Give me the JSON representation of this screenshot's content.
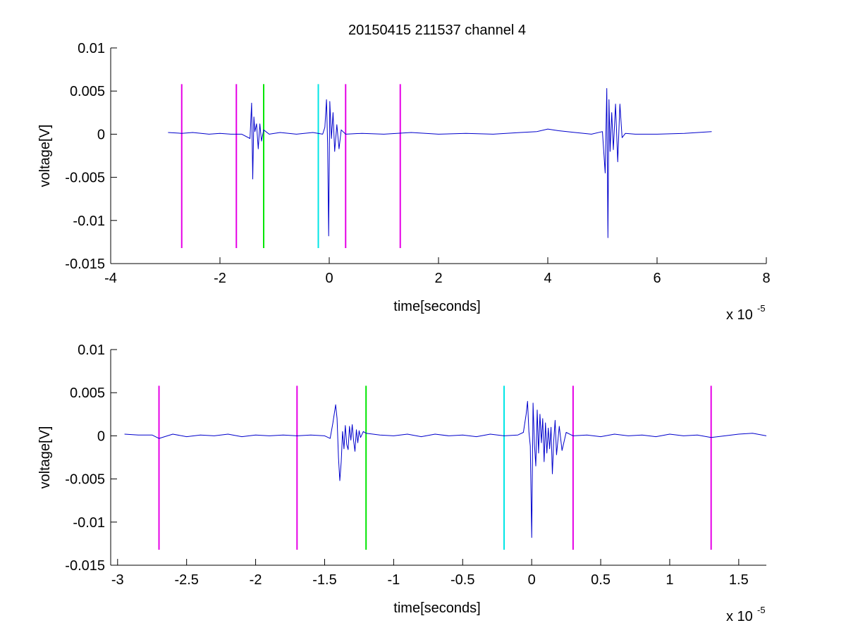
{
  "figure": {
    "title": "20150415 211537 channel 4"
  },
  "colors": {
    "signal": "#0000cc",
    "marker_magenta": "#e600e6",
    "marker_green": "#00e600",
    "marker_cyan": "#00e6e6"
  },
  "chart_data": [
    {
      "type": "line",
      "title": "20150415 211537 channel 4",
      "xlabel": "time[seconds]",
      "ylabel": "voltage[V]",
      "x_multiplier_label": "x 10",
      "x_multiplier_exponent": "-5",
      "xlim": [
        -4,
        8
      ],
      "ylim": [
        -0.015,
        0.01
      ],
      "x_ticks": [
        -4,
        -2,
        0,
        2,
        4,
        6,
        8
      ],
      "x_tick_labels": [
        "-4",
        "-2",
        "0",
        "2",
        "4",
        "6",
        "8"
      ],
      "y_ticks": [
        -0.015,
        -0.01,
        -0.005,
        0,
        0.005,
        0.01
      ],
      "y_tick_labels": [
        "-0.015",
        "-0.01",
        "-0.005",
        "0",
        "0.005",
        "0.01"
      ],
      "grid": false,
      "series": [
        {
          "color": "#0000cc",
          "x": [
            -2.95,
            -2.7,
            -2.5,
            -2.2,
            -2.0,
            -1.8,
            -1.6,
            -1.45,
            -1.42,
            -1.4,
            -1.38,
            -1.36,
            -1.33,
            -1.3,
            -1.27,
            -1.24,
            -1.2,
            -1.1,
            -0.9,
            -0.6,
            -0.3,
            -0.12,
            -0.08,
            -0.05,
            -0.03,
            -0.01,
            0.01,
            0.04,
            0.07,
            0.1,
            0.14,
            0.18,
            0.22,
            0.3,
            0.6,
            1.0,
            1.5,
            2.0,
            2.5,
            3.0,
            3.5,
            3.8,
            4.0,
            4.2,
            4.5,
            4.8,
            5.0,
            5.05,
            5.08,
            5.1,
            5.12,
            5.14,
            5.17,
            5.2,
            5.24,
            5.28,
            5.32,
            5.36,
            5.42,
            5.6,
            6.0,
            6.5,
            7.0
          ],
          "y": [
            0.0002,
            0.0001,
            0.0002,
            0.0,
            0.0001,
            0.0,
            0.0,
            -0.0005,
            0.0036,
            -0.0052,
            0.002,
            0.0003,
            0.0012,
            -0.0017,
            0.0012,
            -0.0008,
            0.0005,
            0.0,
            0.0002,
            0.0,
            0.0002,
            0.0,
            0.0008,
            0.004,
            -0.0011,
            -0.0118,
            0.0038,
            -0.0005,
            0.0025,
            -0.002,
            0.0011,
            -0.0017,
            0.0005,
            0.0,
            0.0001,
            0.0,
            0.0002,
            0.0,
            0.0001,
            0.0,
            0.0002,
            0.0003,
            0.0006,
            0.0004,
            0.0002,
            0.0,
            0.0003,
            -0.0045,
            0.0053,
            -0.012,
            0.004,
            -0.002,
            0.0025,
            -0.0018,
            0.0035,
            -0.0032,
            0.0035,
            -0.0004,
            0.0001,
            0.0,
            0.0,
            0.0001,
            0.0003
          ]
        }
      ],
      "markers": [
        {
          "x": -2.7,
          "y_from": -0.0132,
          "y_to": 0.0058,
          "color": "#e600e6"
        },
        {
          "x": -1.7,
          "y_from": -0.0132,
          "y_to": 0.0058,
          "color": "#e600e6"
        },
        {
          "x": -1.2,
          "y_from": -0.0132,
          "y_to": 0.0058,
          "color": "#00e600"
        },
        {
          "x": -0.2,
          "y_from": -0.0132,
          "y_to": 0.0058,
          "color": "#00e6e6"
        },
        {
          "x": 0.3,
          "y_from": -0.0132,
          "y_to": 0.0058,
          "color": "#e600e6"
        },
        {
          "x": 1.3,
          "y_from": -0.0132,
          "y_to": 0.0058,
          "color": "#e600e6"
        }
      ]
    },
    {
      "type": "line",
      "title": "",
      "xlabel": "time[seconds]",
      "ylabel": "voltage[V]",
      "x_multiplier_label": "x 10",
      "x_multiplier_exponent": "-5",
      "xlim": [
        -3.05,
        1.7
      ],
      "ylim": [
        -0.015,
        0.01
      ],
      "x_ticks": [
        -3,
        -2.5,
        -2,
        -1.5,
        -1,
        -0.5,
        0,
        0.5,
        1,
        1.5
      ],
      "x_tick_labels": [
        "-3",
        "-2.5",
        "-2",
        "-1.5",
        "-1",
        "-0.5",
        "0",
        "0.5",
        "1",
        "1.5"
      ],
      "y_ticks": [
        -0.015,
        -0.01,
        -0.005,
        0,
        0.005,
        0.01
      ],
      "y_tick_labels": [
        "-0.015",
        "-0.01",
        "-0.005",
        "0",
        "0.005",
        "0.01"
      ],
      "grid": false,
      "series": [
        {
          "color": "#0000cc",
          "x": [
            -2.95,
            -2.85,
            -2.75,
            -2.7,
            -2.6,
            -2.5,
            -2.4,
            -2.3,
            -2.2,
            -2.1,
            -2.0,
            -1.9,
            -1.8,
            -1.7,
            -1.6,
            -1.5,
            -1.46,
            -1.44,
            -1.42,
            -1.41,
            -1.4,
            -1.39,
            -1.38,
            -1.37,
            -1.36,
            -1.35,
            -1.34,
            -1.33,
            -1.32,
            -1.31,
            -1.3,
            -1.29,
            -1.28,
            -1.27,
            -1.26,
            -1.25,
            -1.24,
            -1.22,
            -1.2,
            -1.1,
            -1.0,
            -0.9,
            -0.8,
            -0.7,
            -0.6,
            -0.5,
            -0.4,
            -0.3,
            -0.2,
            -0.1,
            -0.06,
            -0.04,
            -0.03,
            -0.02,
            -0.01,
            0.0,
            0.01,
            0.02,
            0.03,
            0.04,
            0.05,
            0.06,
            0.07,
            0.08,
            0.09,
            0.1,
            0.11,
            0.12,
            0.13,
            0.14,
            0.15,
            0.16,
            0.17,
            0.18,
            0.2,
            0.22,
            0.25,
            0.3,
            0.4,
            0.5,
            0.6,
            0.7,
            0.8,
            0.9,
            1.0,
            1.1,
            1.2,
            1.3,
            1.4,
            1.5,
            1.6,
            1.7
          ],
          "y": [
            0.0002,
            0.0001,
            0.0001,
            -0.0003,
            0.0002,
            -0.0001,
            0.0001,
            0.0,
            0.0002,
            -0.0001,
            0.0001,
            0.0,
            0.0001,
            0.0,
            0.0001,
            0.0,
            -0.0003,
            0.0015,
            0.0036,
            0.002,
            -0.0025,
            -0.0052,
            -0.003,
            0.0005,
            -0.0015,
            0.0012,
            -0.001,
            -0.0016,
            0.0011,
            -0.0005,
            0.0013,
            -0.0006,
            -0.0018,
            0.0007,
            -0.0008,
            0.0006,
            -0.0002,
            0.0005,
            0.0003,
            0.0001,
            0.0,
            0.0002,
            -0.0001,
            0.0002,
            0.0,
            0.0001,
            -0.0001,
            0.0002,
            0.0,
            0.0001,
            0.0004,
            0.0025,
            0.004,
            0.0005,
            -0.0012,
            -0.0118,
            0.0038,
            -0.001,
            -0.0035,
            0.003,
            -0.002,
            0.0025,
            -0.0008,
            0.002,
            -0.003,
            0.0015,
            -0.002,
            0.0009,
            -0.0015,
            0.001,
            -0.0044,
            -0.0005,
            0.0018,
            -0.0022,
            0.0011,
            -0.0017,
            0.0004,
            0.0,
            0.0001,
            -0.0001,
            0.0002,
            0.0,
            0.0001,
            -0.0001,
            0.0002,
            0.0,
            0.0001,
            -0.0002,
            0.0,
            0.0002,
            0.0003,
            0.0
          ]
        }
      ],
      "markers": [
        {
          "x": -2.7,
          "y_from": -0.0132,
          "y_to": 0.0058,
          "color": "#e600e6"
        },
        {
          "x": -1.7,
          "y_from": -0.0132,
          "y_to": 0.0058,
          "color": "#e600e6"
        },
        {
          "x": -1.2,
          "y_from": -0.0132,
          "y_to": 0.0058,
          "color": "#00e600"
        },
        {
          "x": -0.2,
          "y_from": -0.0132,
          "y_to": 0.0058,
          "color": "#00e6e6"
        },
        {
          "x": 0.3,
          "y_from": -0.0132,
          "y_to": 0.0058,
          "color": "#e600e6"
        },
        {
          "x": 1.3,
          "y_from": -0.0132,
          "y_to": 0.0058,
          "color": "#e600e6"
        }
      ]
    }
  ]
}
